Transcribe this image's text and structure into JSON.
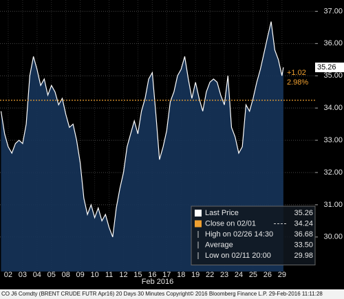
{
  "chart_data": {
    "type": "area",
    "color": "#ffffff",
    "fill": "#16345a",
    "background": "#000000",
    "grid": true,
    "x_label": "Feb 2016",
    "footer": "CO J6 Comdty (BRENT CRUDE FUTR  Apr16) 20 Days 30 Minutes Copyright© 2016 Bloomberg Finance L.P.  29-Feb-2016 11:11:28",
    "xlim": [
      -0.07,
      21.8
    ],
    "xticks": [
      {
        "value": 0.5,
        "label": "02"
      },
      {
        "value": 1.5,
        "label": "03"
      },
      {
        "value": 2.5,
        "label": "04"
      },
      {
        "value": 3.5,
        "label": "05"
      },
      {
        "value": 4.5,
        "label": "08"
      },
      {
        "value": 5.5,
        "label": "09"
      },
      {
        "value": 6.5,
        "label": "10"
      },
      {
        "value": 7.5,
        "label": "11"
      },
      {
        "value": 8.5,
        "label": "12"
      },
      {
        "value": 9.5,
        "label": "15"
      },
      {
        "value": 10.5,
        "label": "16"
      },
      {
        "value": 11.5,
        "label": "17"
      },
      {
        "value": 12.5,
        "label": "18"
      },
      {
        "value": 13.5,
        "label": "19"
      },
      {
        "value": 14.5,
        "label": "22"
      },
      {
        "value": 15.5,
        "label": "23"
      },
      {
        "value": 16.5,
        "label": "24"
      },
      {
        "value": 17.5,
        "label": "25"
      },
      {
        "value": 18.5,
        "label": "26"
      },
      {
        "value": 19.5,
        "label": "29"
      }
    ],
    "ylim": [
      28.93,
      37.35
    ],
    "yticks": [
      {
        "value": 30,
        "label": "30.00"
      },
      {
        "value": 31,
        "label": "31.00"
      },
      {
        "value": 32,
        "label": "32.00"
      },
      {
        "value": 33,
        "label": "33.00"
      },
      {
        "value": 34,
        "label": "34.00"
      },
      {
        "value": 35,
        "label": "35.00"
      },
      {
        "value": 36,
        "label": "36.00"
      },
      {
        "value": 37,
        "label": "37.00"
      }
    ],
    "x": [
      0,
      0.25,
      0.5,
      0.75,
      1,
      1.25,
      1.5,
      1.75,
      2,
      2.25,
      2.5,
      2.75,
      3,
      3.25,
      3.5,
      3.75,
      4,
      4.25,
      4.5,
      4.75,
      5,
      5.25,
      5.5,
      5.75,
      6,
      6.25,
      6.5,
      6.75,
      7,
      7.25,
      7.5,
      7.75,
      8,
      8.25,
      8.5,
      8.75,
      9,
      9.25,
      9.5,
      9.75,
      10,
      10.25,
      10.5,
      10.75,
      11,
      11.25,
      11.5,
      11.75,
      12,
      12.25,
      12.5,
      12.75,
      13,
      13.25,
      13.5,
      13.75,
      14,
      14.25,
      14.5,
      14.75,
      15,
      15.25,
      15.5,
      15.75,
      16,
      16.25,
      16.5,
      16.75,
      17,
      17.25,
      17.5,
      17.75,
      18,
      18.25,
      18.5,
      18.75,
      19,
      19.25,
      19.5,
      19.6
    ],
    "series": [
      {
        "name": "Last Price",
        "values": [
          33.9,
          33.2,
          32.8,
          32.6,
          32.9,
          33.0,
          32.9,
          33.5,
          35.0,
          35.6,
          35.2,
          34.7,
          34.9,
          34.4,
          34.7,
          34.5,
          34.1,
          34.3,
          33.8,
          33.4,
          33.5,
          33.0,
          32.3,
          31.2,
          30.7,
          31.0,
          30.6,
          30.9,
          30.5,
          30.7,
          30.3,
          30.0,
          30.9,
          31.5,
          32.0,
          32.8,
          33.2,
          33.6,
          33.2,
          33.9,
          34.3,
          34.9,
          35.1,
          33.8,
          32.4,
          32.8,
          33.3,
          34.2,
          34.5,
          35.0,
          35.2,
          35.6,
          34.9,
          34.3,
          34.8,
          34.3,
          33.9,
          34.5,
          34.8,
          34.9,
          34.8,
          34.4,
          34.1,
          35.0,
          33.4,
          33.1,
          32.6,
          32.8,
          34.1,
          33.9,
          34.3,
          34.8,
          35.2,
          35.7,
          36.2,
          36.68,
          35.8,
          35.5,
          35.0,
          35.26
        ]
      }
    ],
    "change": {
      "value": 1.02,
      "label": "+1.02"
    },
    "change_pct": {
      "value": 2.98,
      "label": "2.98%"
    },
    "legend": [
      {
        "label": "Last Price",
        "value": 35.26,
        "color": "#ffffff"
      },
      {
        "label": "Close on 02/01",
        "value": 34.24,
        "color": "#f0a030"
      },
      {
        "label": "High on 02/26 14:30",
        "value": 36.68
      },
      {
        "label": "Average",
        "value": {
          "value": 33.5,
          "label": "33.50"
        }
      },
      {
        "label": "Low on 02/11 20:00",
        "value": 29.98
      }
    ]
  }
}
